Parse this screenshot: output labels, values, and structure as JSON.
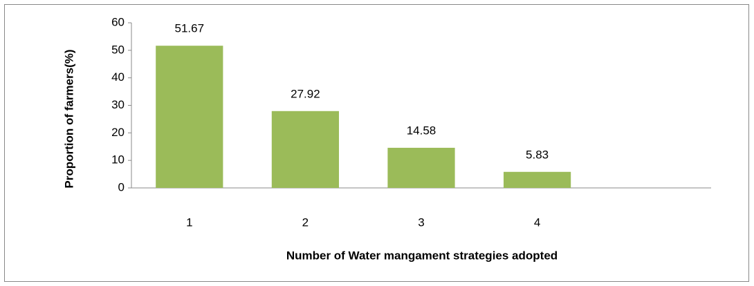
{
  "chart_data": {
    "type": "bar",
    "x_label": "Number of Water mangament strategies adopted",
    "y_label": "Proportion of farmers(%)",
    "categories": [
      "1",
      "2",
      "3",
      "4",
      null
    ],
    "values": [
      51.67,
      27.92,
      14.58,
      5.83,
      null
    ],
    "color": "#9bbb59",
    "ylim": [
      0,
      60
    ],
    "yticks": [
      0,
      10,
      20,
      30,
      40,
      50,
      60
    ]
  }
}
